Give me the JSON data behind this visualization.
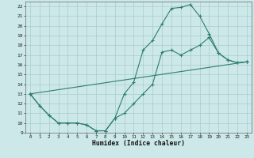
{
  "xlabel": "Humidex (Indice chaleur)",
  "xlim": [
    -0.5,
    23.5
  ],
  "ylim": [
    9,
    22.5
  ],
  "yticks": [
    9,
    10,
    11,
    12,
    13,
    14,
    15,
    16,
    17,
    18,
    19,
    20,
    21,
    22
  ],
  "xticks": [
    0,
    1,
    2,
    3,
    4,
    5,
    6,
    7,
    8,
    9,
    10,
    11,
    12,
    13,
    14,
    15,
    16,
    17,
    18,
    19,
    20,
    21,
    22,
    23
  ],
  "line_color": "#2e7d72",
  "bg_color": "#cce8e8",
  "grid_color": "#aacccc",
  "curve1_x": [
    0,
    1,
    2,
    3,
    4,
    5,
    6,
    7,
    8,
    9,
    10,
    11,
    12,
    13,
    14,
    15,
    16,
    17,
    18,
    19,
    20,
    21,
    22,
    23
  ],
  "curve1_y": [
    13,
    11.8,
    10.8,
    10.0,
    10.0,
    10.0,
    9.8,
    9.2,
    9.2,
    10.5,
    11.0,
    12.0,
    13.0,
    14.0,
    17.3,
    17.5,
    17.0,
    17.5,
    18.0,
    18.8,
    17.2,
    16.5,
    16.2,
    16.3
  ],
  "curve2_x": [
    0,
    1,
    2,
    3,
    4,
    5,
    6,
    7,
    8,
    9,
    10,
    11,
    12,
    13,
    14,
    15,
    16,
    17,
    18,
    19,
    20,
    21,
    22,
    23
  ],
  "curve2_y": [
    13,
    11.8,
    10.8,
    10.0,
    10.0,
    10.0,
    9.8,
    9.2,
    9.2,
    10.5,
    13.0,
    14.2,
    17.5,
    18.5,
    20.2,
    21.8,
    21.9,
    22.2,
    21.0,
    19.2,
    17.2,
    16.5,
    16.2,
    16.3
  ],
  "curve3_x": [
    0,
    23
  ],
  "curve3_y": [
    13,
    16.3
  ]
}
